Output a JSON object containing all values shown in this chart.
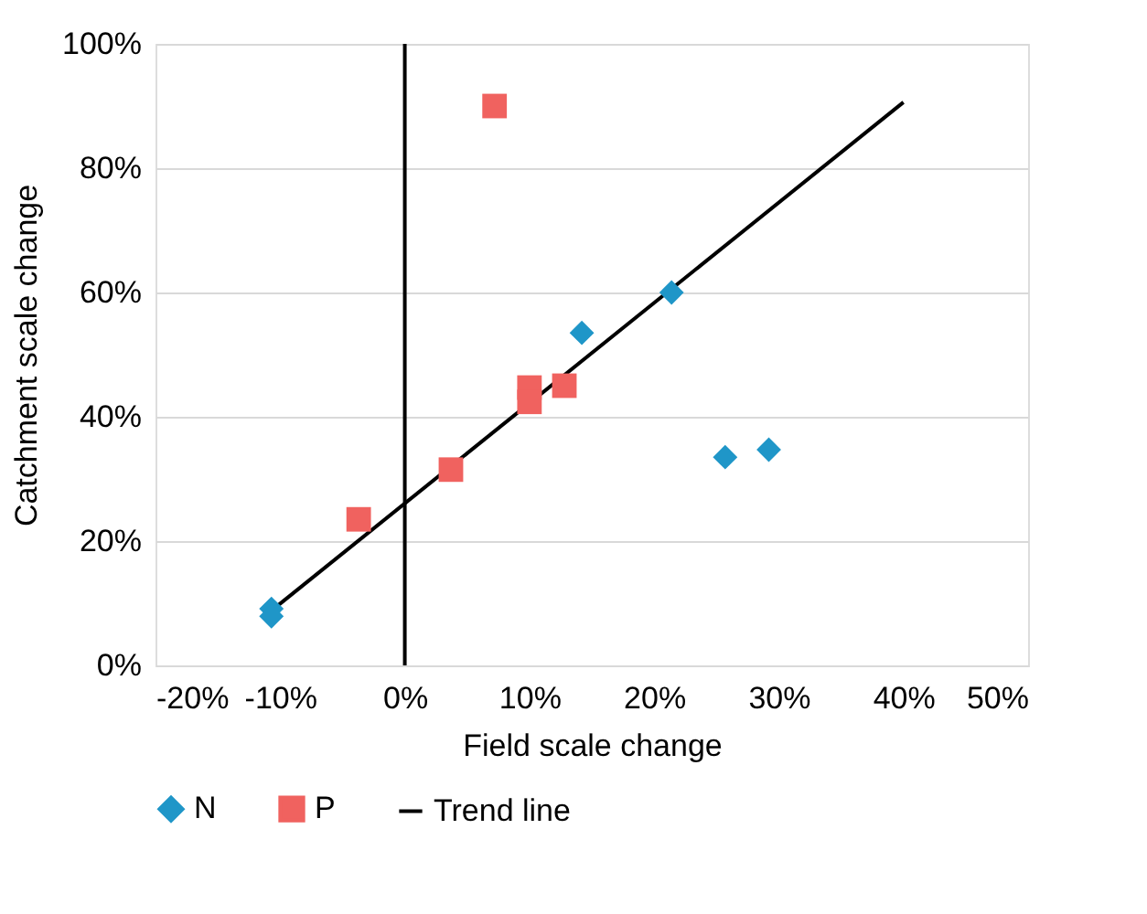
{
  "chart_data": {
    "type": "scatter",
    "xlabel": "Field scale change",
    "ylabel": "Catchment scale change",
    "series": [
      {
        "name": "N",
        "color": "#1f96c8",
        "marker": "diamond",
        "x": [
          -10.7,
          -10.7,
          14.2,
          21.4,
          25.7,
          29.2
        ],
        "values": [
          9.1,
          7.9,
          53.5,
          60.0,
          33.5,
          34.7
        ]
      },
      {
        "name": "P",
        "color": "#f0625f",
        "marker": "square",
        "x": [
          7.2,
          -3.7,
          3.7,
          10.0,
          10.0,
          12.8
        ],
        "values": [
          90.0,
          23.5,
          31.5,
          44.7,
          42.4,
          45.0
        ]
      },
      {
        "name": "Trend line",
        "type": "line",
        "color": "#000000",
        "marker": "none",
        "line_style": "solid",
        "x": [
          -10.7,
          40
        ],
        "values": [
          8.8,
          90.6
        ]
      }
    ],
    "xlim": [
      -20,
      50
    ],
    "ylim": [
      0,
      100
    ],
    "xticks": [
      {
        "value": -20,
        "label": "-20%"
      },
      {
        "value": -10,
        "label": "-10%"
      },
      {
        "value": 0,
        "label": "0%"
      },
      {
        "value": 10,
        "label": "10%"
      },
      {
        "value": 20,
        "label": "20%"
      },
      {
        "value": 30,
        "label": "30%"
      },
      {
        "value": 40,
        "label": "40%"
      },
      {
        "value": 50,
        "label": "50%"
      }
    ],
    "yticks": [
      {
        "value": 0,
        "label": "0%"
      },
      {
        "value": 20,
        "label": "20%"
      },
      {
        "value": 40,
        "label": "40%"
      },
      {
        "value": 60,
        "label": "60%"
      },
      {
        "value": 80,
        "label": "80%"
      },
      {
        "value": 100,
        "label": "100%"
      }
    ],
    "ref_lines": [
      {
        "axis": "x",
        "value": 0,
        "color": "#000000"
      }
    ],
    "grid": "y",
    "legend": "bottom"
  }
}
